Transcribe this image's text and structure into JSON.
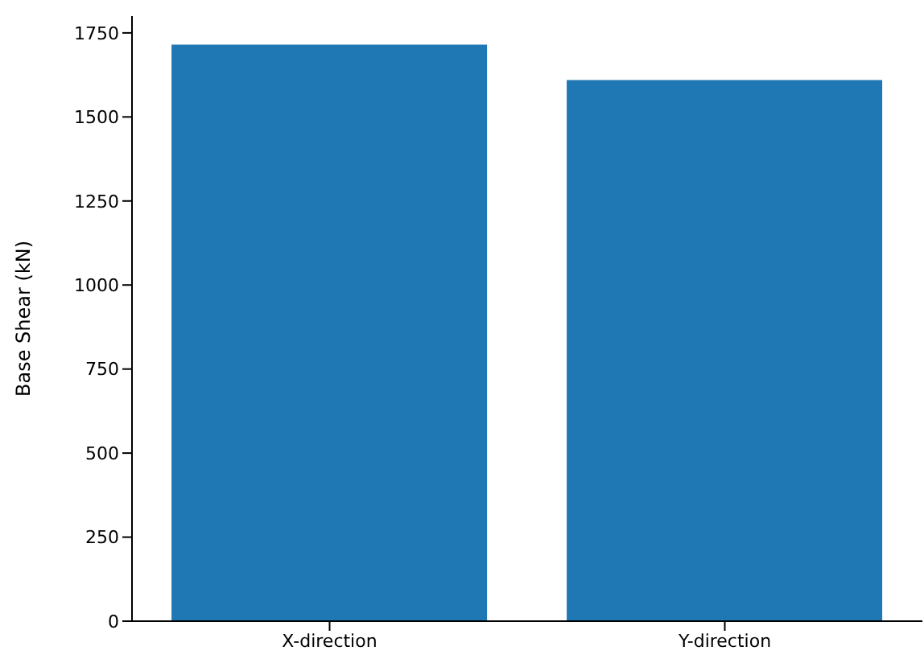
{
  "chart_data": {
    "type": "bar",
    "ylabel": "Base Shear (kN)",
    "categories": [
      "X-direction",
      "Y-direction"
    ],
    "values": [
      1715,
      1610
    ],
    "color": "#1f77b4",
    "ylim": [
      0,
      1800
    ],
    "yticks": [
      0,
      250,
      500,
      750,
      1000,
      1250,
      1500,
      1750
    ],
    "grid": false,
    "legend": false
  }
}
